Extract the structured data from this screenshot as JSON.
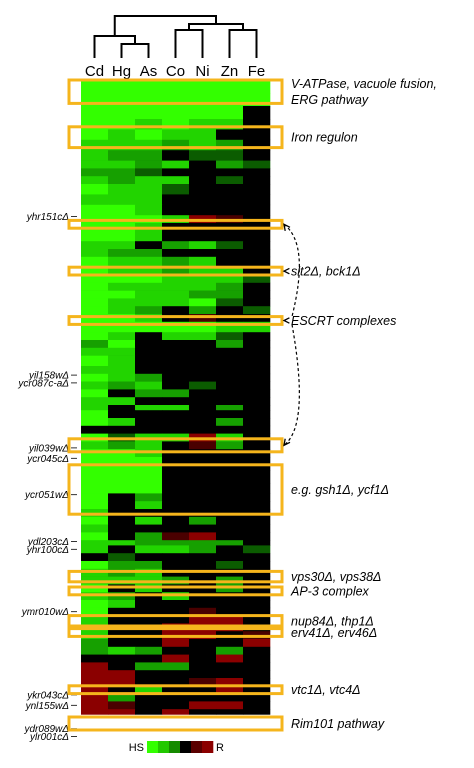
{
  "chart_data": {
    "type": "heatmap",
    "title": "",
    "columns": [
      "Cd",
      "Hg",
      "As",
      "Co",
      "Ni",
      "Zn",
      "Fe"
    ],
    "dendrogram": {
      "description": "hierarchical clustering of conditions",
      "groups": [
        [
          "Cd",
          [
            "Hg",
            "As"
          ]
        ],
        [
          [
            "Co",
            "Ni"
          ],
          [
            "Zn",
            "Fe"
          ]
        ]
      ]
    },
    "colorscale": {
      "low_label": "HS",
      "high_label": "R",
      "colors": [
        "#33ff00",
        "#22c800",
        "#158a00",
        "#000000",
        "#5a0000",
        "#8b0000"
      ]
    },
    "row_blocks": [
      {
        "rows": 5,
        "values": [
          -2.6,
          -2.6,
          -2.6,
          -2.6,
          -2.6,
          -2.6,
          -2.6
        ]
      },
      {
        "rows": 5,
        "values": [
          -2.5,
          -2.5,
          -2.5,
          -2.4,
          -2.6,
          -2.4,
          -2.3
        ]
      },
      {
        "rows": 5,
        "values": [
          -2.4,
          -2.5,
          -2.4,
          -2.4,
          -2.3,
          -2.3,
          0.0
        ]
      },
      {
        "rows": 4,
        "values": [
          -2.4,
          -2.3,
          -2.2,
          -2.3,
          -2.2,
          -2.0,
          0.0
        ]
      },
      {
        "rows": 4,
        "values": [
          -2.3,
          -2.2,
          -2.3,
          -2.0,
          -1.8,
          0.0,
          0.0
        ]
      },
      {
        "rows": 4,
        "values": [
          -2.2,
          -2.1,
          -1.8,
          -1.2,
          -2.0,
          -1.6,
          0.0
        ]
      },
      {
        "rows": 4,
        "values": [
          -2.0,
          -1.6,
          -1.2,
          0.0,
          -1.0,
          -0.8,
          0.0
        ]
      },
      {
        "rows": 3,
        "values": [
          -1.8,
          -2.0,
          -1.5,
          -1.8,
          0.0,
          -1.2,
          -1.0
        ]
      },
      {
        "rows": 3,
        "values": [
          -1.5,
          -1.2,
          -0.8,
          0.0,
          0.0,
          0.0,
          0.0
        ]
      },
      {
        "rows": 3,
        "values": [
          -2.0,
          -1.5,
          -2.0,
          -1.8,
          0.4,
          -1.0,
          0.0
        ]
      },
      {
        "rows": 4,
        "values": [
          -2.4,
          -2.2,
          -1.8,
          -0.6,
          0.0,
          0.0,
          0.0
        ]
      },
      {
        "rows": 4,
        "values": [
          -2.2,
          -2.1,
          -1.9,
          0.0,
          0.0,
          0.0,
          0.0
        ]
      },
      {
        "rows": 4,
        "values": [
          -2.3,
          -2.3,
          -2.1,
          0.0,
          0.0,
          0.0,
          0.0
        ]
      },
      {
        "rows": 3,
        "values": [
          -2.5,
          -2.4,
          -2.4,
          -2.0,
          1.5,
          0.6,
          0.0
        ]
      },
      {
        "rows": 3,
        "values": [
          -2.4,
          -2.4,
          -1.8,
          0.0,
          0.0,
          0.0,
          0.0
        ]
      },
      {
        "rows": 4,
        "values": [
          -2.5,
          -2.4,
          -2.2,
          0.0,
          0.0,
          0.0,
          0.0
        ]
      },
      {
        "rows": 3,
        "values": [
          -2.2,
          -2.0,
          0.0,
          -1.2,
          -2.0,
          -0.8,
          0.0
        ]
      },
      {
        "rows": 3,
        "values": [
          -2.0,
          -1.2,
          -1.4,
          0.0,
          0.0,
          0.0,
          0.0
        ]
      },
      {
        "rows": 4,
        "values": [
          -2.4,
          -2.2,
          -2.0,
          -1.2,
          -1.8,
          0.0,
          0.0
        ]
      },
      {
        "rows": 3,
        "values": [
          -2.3,
          -1.8,
          -2.2,
          -1.5,
          -2.0,
          -2.2,
          0.0
        ]
      },
      {
        "rows": 3,
        "values": [
          -2.5,
          -2.4,
          -2.3,
          -1.8,
          -2.2,
          -2.0,
          -1.0
        ]
      },
      {
        "rows": 3,
        "values": [
          -2.3,
          -2.2,
          -2.1,
          -2.0,
          -1.8,
          -1.5,
          0.0
        ]
      },
      {
        "rows": 3,
        "values": [
          -2.4,
          -2.3,
          -2.2,
          -1.8,
          -1.6,
          -1.5,
          0.0
        ]
      },
      {
        "rows": 3,
        "values": [
          -2.4,
          -2.2,
          -2.2,
          -2.0,
          -2.4,
          -1.0,
          0.0
        ]
      },
      {
        "rows": 3,
        "values": [
          -2.3,
          -2.2,
          -1.6,
          0.0,
          -1.6,
          0.0,
          -1.0
        ]
      },
      {
        "rows": 3,
        "values": [
          -2.4,
          -2.3,
          -2.0,
          0.0,
          0.5,
          0.0,
          0.0
        ]
      },
      {
        "rows": 4,
        "values": [
          -2.6,
          -2.4,
          -2.5,
          -2.4,
          -2.5,
          -2.2,
          -1.8
        ]
      },
      {
        "rows": 3,
        "values": [
          -2.3,
          -2.0,
          0.0,
          -1.8,
          -2.0,
          -0.6,
          0.0
        ]
      },
      {
        "rows": 3,
        "values": [
          -1.6,
          -2.4,
          0.0,
          0.0,
          0.0,
          -1.2,
          0.0
        ]
      },
      {
        "rows": 3,
        "values": [
          -2.0,
          -1.8,
          0.0,
          0.0,
          0.0,
          0.0,
          0.0
        ]
      },
      {
        "rows": 4,
        "values": [
          -2.4,
          -2.2,
          0.0,
          0.0,
          0.0,
          0.0,
          0.0
        ]
      },
      {
        "rows": 3,
        "values": [
          -2.2,
          -2.0,
          0.0,
          0.0,
          0.0,
          0.0,
          0.0
        ]
      },
      {
        "rows": 3,
        "values": [
          -2.4,
          -2.2,
          -1.5,
          0.0,
          0.0,
          0.0,
          0.0
        ]
      },
      {
        "rows": 3,
        "values": [
          -2.0,
          -1.5,
          -1.8,
          0.0,
          -0.8,
          0.0,
          0.0
        ]
      },
      {
        "rows": 3,
        "values": [
          -2.3,
          0.0,
          -1.6,
          -1.2,
          0.0,
          0.0,
          0.0
        ]
      },
      {
        "rows": 3,
        "values": [
          -2.2,
          -1.8,
          0.0,
          0.0,
          0.0,
          0.0,
          0.0
        ]
      },
      {
        "rows": 2,
        "values": [
          -2.0,
          0.0,
          -2.0,
          -2.2,
          0.0,
          -1.6,
          0.0
        ]
      },
      {
        "rows": 3,
        "values": [
          -2.3,
          0.0,
          0.0,
          0.0,
          0.0,
          0.0,
          0.0
        ]
      },
      {
        "rows": 3,
        "values": [
          -2.4,
          -2.2,
          0.0,
          0.0,
          0.0,
          -1.4,
          0.0
        ]
      },
      {
        "rows": 3,
        "values": [
          0.0,
          0.0,
          0.0,
          0.0,
          0.0,
          0.0,
          0.0
        ]
      },
      {
        "rows": 3,
        "values": [
          -2.4,
          -1.0,
          -2.2,
          -1.8,
          1.6,
          -2.0,
          0.0
        ]
      },
      {
        "rows": 3,
        "values": [
          -2.2,
          -1.6,
          -2.0,
          0.0,
          1.2,
          -1.6,
          0.0
        ]
      },
      {
        "rows": 3,
        "values": [
          -2.5,
          -2.4,
          -2.2,
          0.0,
          0.0,
          0.0,
          0.0
        ]
      },
      {
        "rows": 5,
        "values": [
          -2.6,
          -2.5,
          -2.5,
          0.0,
          0.0,
          0.0,
          0.0
        ]
      },
      {
        "rows": 5,
        "values": [
          -2.6,
          -2.5,
          -2.4,
          0.0,
          0.0,
          0.0,
          0.0
        ]
      },
      {
        "rows": 4,
        "values": [
          -2.5,
          -2.4,
          -2.3,
          0.0,
          0.0,
          0.0,
          0.0
        ]
      },
      {
        "rows": 3,
        "values": [
          -2.3,
          0.0,
          -1.6,
          0.0,
          0.0,
          0.0,
          0.0
        ]
      },
      {
        "rows": 3,
        "values": [
          -2.4,
          0.0,
          -2.0,
          0.0,
          0.0,
          0.0,
          0.0
        ]
      },
      {
        "rows": 3,
        "values": [
          -2.2,
          0.0,
          0.0,
          0.0,
          0.0,
          0.0,
          0.0
        ]
      },
      {
        "rows": 3,
        "values": [
          -2.3,
          0.0,
          -2.0,
          0.0,
          -1.4,
          0.0,
          0.0
        ]
      },
      {
        "rows": 3,
        "values": [
          -2.2,
          0.0,
          0.0,
          0.0,
          0.0,
          0.0,
          0.0
        ]
      },
      {
        "rows": 3,
        "values": [
          -2.4,
          0.0,
          -1.5,
          0.6,
          1.4,
          0.0,
          0.0
        ]
      },
      {
        "rows": 2,
        "values": [
          -2.0,
          -1.8,
          -1.6,
          -1.6,
          -1.6,
          -1.4,
          0.0
        ]
      },
      {
        "rows": 3,
        "values": [
          -2.2,
          0.0,
          -1.8,
          -2.0,
          -1.2,
          0.0,
          -0.8
        ]
      },
      {
        "rows": 3,
        "values": [
          0.0,
          -0.8,
          0.0,
          0.0,
          0.0,
          0.0,
          0.0
        ]
      },
      {
        "rows": 3,
        "values": [
          -2.3,
          -1.6,
          -1.4,
          0.0,
          0.0,
          -1.0,
          0.0
        ]
      },
      {
        "rows": 3,
        "values": [
          -2.2,
          -1.2,
          -2.0,
          0.0,
          0.0,
          0.0,
          0.0
        ]
      },
      {
        "rows": 3,
        "values": [
          -2.0,
          -2.2,
          -1.8,
          -1.6,
          0.0,
          -1.2,
          0.0
        ]
      },
      {
        "rows": 3,
        "values": [
          -2.3,
          0.0,
          -2.0,
          0.0,
          0.0,
          -1.2,
          0.0
        ]
      },
      {
        "rows": 3,
        "values": [
          -2.2,
          -1.6,
          0.0,
          -2.0,
          0.0,
          0.0,
          0.0
        ]
      },
      {
        "rows": 3,
        "values": [
          -2.4,
          -2.2,
          0.0,
          0.0,
          0.0,
          0.0,
          0.0
        ]
      },
      {
        "rows": 3,
        "values": [
          -2.3,
          0.0,
          0.0,
          0.0,
          1.0,
          0.0,
          0.0
        ]
      },
      {
        "rows": 3,
        "values": [
          -2.1,
          0.0,
          0.0,
          0.0,
          2.0,
          1.6,
          0.0
        ]
      },
      {
        "rows": 3,
        "values": [
          -2.0,
          0.0,
          0.0,
          1.5,
          2.0,
          2.0,
          0.0
        ]
      },
      {
        "rows": 3,
        "values": [
          -1.8,
          0.0,
          0.0,
          2.0,
          2.0,
          0.0,
          0.8
        ]
      },
      {
        "rows": 3,
        "values": [
          -1.2,
          0.0,
          0.0,
          1.6,
          0.0,
          0.0,
          1.4
        ]
      },
      {
        "rows": 3,
        "values": [
          -1.6,
          -1.8,
          -1.4,
          0.0,
          0.0,
          -1.6,
          0.0
        ]
      },
      {
        "rows": 3,
        "values": [
          0.0,
          0.0,
          0.0,
          1.8,
          0.0,
          1.5,
          0.0
        ]
      },
      {
        "rows": 3,
        "values": [
          2.0,
          0.0,
          -1.6,
          -1.4,
          0.0,
          0.0,
          0.0
        ]
      },
      {
        "rows": 3,
        "values": [
          2.0,
          1.8,
          0.0,
          0.0,
          0.0,
          0.0,
          0.0
        ]
      },
      {
        "rows": 3,
        "values": [
          2.0,
          2.0,
          0.0,
          0.0,
          1.0,
          2.0,
          0.0
        ]
      },
      {
        "rows": 3,
        "values": [
          2.0,
          0.0,
          -2.0,
          0.0,
          0.0,
          1.6,
          0.0
        ]
      },
      {
        "rows": 3,
        "values": [
          1.8,
          -1.6,
          0.0,
          0.0,
          0.0,
          0.0,
          0.0
        ]
      },
      {
        "rows": 3,
        "values": [
          2.0,
          1.2,
          0.0,
          0.0,
          1.8,
          2.0,
          0.0
        ]
      },
      {
        "rows": 2,
        "values": [
          2.0,
          2.0,
          0.0,
          1.4,
          0.0,
          0.0,
          0.0
        ]
      }
    ],
    "gene_labels": [
      {
        "text": "yhr151cΔ",
        "row": 52
      },
      {
        "text": "yil158wΔ",
        "row": 113
      },
      {
        "text": "ycr087c-aΔ",
        "row": 116
      },
      {
        "text": "yil039wΔ",
        "row": 141
      },
      {
        "text": "ycr045cΔ",
        "row": 145
      },
      {
        "text": "ycr051wΔ",
        "row": 159
      },
      {
        "text": "ydl203cΔ",
        "row": 177
      },
      {
        "text": "yhr100cΔ",
        "row": 180
      },
      {
        "text": "ymr010wΔ",
        "row": 204
      },
      {
        "text": "ykr043cΔ",
        "row": 236
      },
      {
        "text": "ynl155wΔ",
        "row": 240
      },
      {
        "text": "ydr089wΔ",
        "row": 249
      },
      {
        "text": "ylr001cΔ",
        "row": 252
      }
    ],
    "annotation_boxes": [
      {
        "label": "V-ATPase, vacuole fusion,\nERG pathway",
        "row_start": 0,
        "row_end": 9
      },
      {
        "label": "Iron regulon",
        "row_start": 18,
        "row_end": 26
      },
      {
        "label": "",
        "row_start": 54,
        "row_end": 57
      },
      {
        "label": "slt2Δ, bck1Δ",
        "row_start": 72,
        "row_end": 75
      },
      {
        "label": "ESCRT complexes",
        "row_start": 91,
        "row_end": 94
      },
      {
        "label": "",
        "row_start": 138,
        "row_end": 143
      },
      {
        "label": "e.g. gsh1Δ, ycf1Δ",
        "row_start": 148,
        "row_end": 167
      },
      {
        "label": "vps30Δ, vps38Δ",
        "row_start": 189,
        "row_end": 193
      },
      {
        "label": "AP-3 complex",
        "row_start": 195,
        "row_end": 198
      },
      {
        "label": "nup84Δ, thp1Δ",
        "row_start": 206,
        "row_end": 210
      },
      {
        "label": "erv41Δ, erv46Δ",
        "row_start": 211,
        "row_end": 214
      },
      {
        "label": "vtc1Δ, vtc4Δ",
        "row_start": 233,
        "row_end": 236
      },
      {
        "label": "Rim101 pathway",
        "row_start": 245,
        "row_end": 250
      }
    ],
    "arrow_group": {
      "from_box": 2,
      "to_box": 5,
      "via_boxes": [
        3,
        4
      ]
    }
  }
}
